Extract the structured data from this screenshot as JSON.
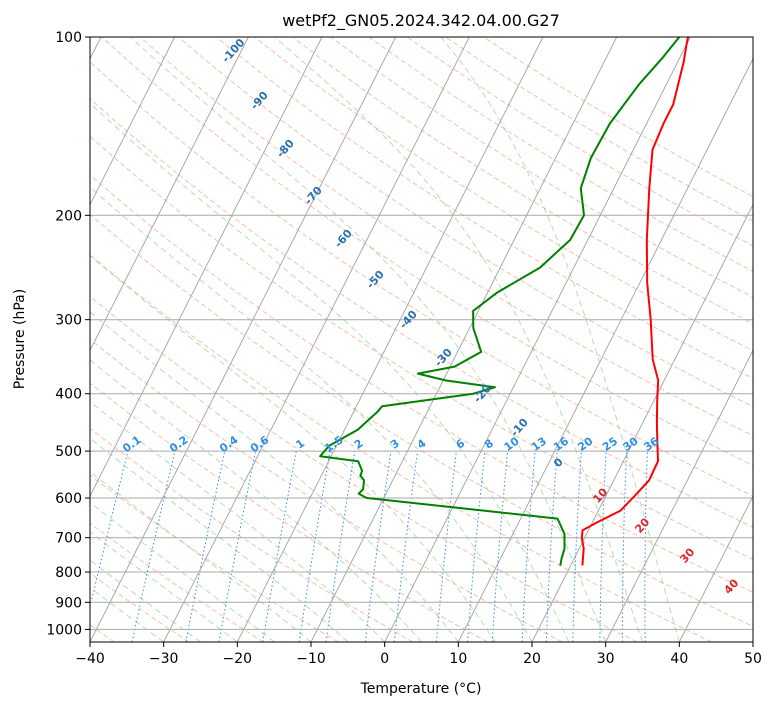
{
  "chart_data": {
    "type": "line",
    "subtype": "skew-T log-P diagram",
    "title": "wetPf2_GN05.2024.342.04.00.G27",
    "xlabel": "Temperature (°C)",
    "ylabel": "Pressure (hPa)",
    "xlim": [
      -40,
      50
    ],
    "ylim": [
      1050,
      100
    ],
    "y_scale": "log",
    "grid": true,
    "x_ticks": [
      -40,
      -30,
      -20,
      -10,
      0,
      10,
      20,
      30,
      40,
      50
    ],
    "y_ticks": [
      100,
      200,
      300,
      400,
      500,
      600,
      700,
      800,
      900,
      1000
    ],
    "colors": {
      "temperature": "#ff0000",
      "dewpoint": "#008000",
      "dry_adiabat": "#2a6fb0",
      "mixing_ratio": "#2f8fe3",
      "moist_adiabat": "#d62728"
    },
    "series": [
      {
        "label": "temperature",
        "x": [
          -0.3,
          0,
          0.8,
          2.3,
          2.3,
          2.6,
          4.8,
          8,
          11,
          14,
          17,
          19.2,
          20.4,
          22,
          23.2,
          24.7,
          24.8,
          23.8,
          23,
          20.6,
          19.2,
          19.6,
          20.6,
          21.2,
          21.6
        ],
        "y": [
          100,
          103,
          110,
          130,
          140,
          155,
          180,
          220,
          260,
          300,
          350,
          380,
          410,
          450,
          480,
          520,
          560,
          600,
          630,
          660,
          680,
          700,
          730,
          760,
          780
        ]
      },
      {
        "label": "dewpoint",
        "x": [
          -1.5,
          -2.3,
          -3.7,
          -5,
          -5.2,
          -4.5,
          -2.2,
          -2.4,
          -4.6,
          -8.7,
          -10.7,
          -9.5,
          -6.8,
          -9.4,
          -13.9,
          -9.6,
          -2.5,
          -5,
          -16.5,
          -16.8,
          -17.3,
          -18.2,
          -21,
          -21.5,
          -16,
          -14.8,
          -14.7,
          -13.9,
          -13.4,
          -13.7,
          -12.3,
          15,
          17,
          18,
          18.3,
          18.6
        ],
        "y": [
          100,
          108,
          120,
          140,
          160,
          180,
          200,
          220,
          245,
          270,
          290,
          310,
          340,
          360,
          370,
          380,
          390,
          400,
          420,
          430,
          440,
          460,
          490,
          510,
          520,
          540,
          550,
          560,
          580,
          590,
          600,
          650,
          690,
          730,
          760,
          780
        ]
      }
    ],
    "dry_adiabat_labels": [
      "-100",
      "-90",
      "-80",
      "-70",
      "-60",
      "-50",
      "-40",
      "-30",
      "-20",
      "-10",
      "0"
    ],
    "mixing_ratio_labels": [
      "0.1",
      "0.2",
      "0.4",
      "0.6",
      "1",
      "1.5",
      "2",
      "3",
      "4",
      "6",
      "8",
      "10",
      "13",
      "16",
      "20",
      "25",
      "30",
      "36"
    ],
    "moist_adiabat_labels": [
      "10",
      "20",
      "30",
      "40"
    ]
  }
}
